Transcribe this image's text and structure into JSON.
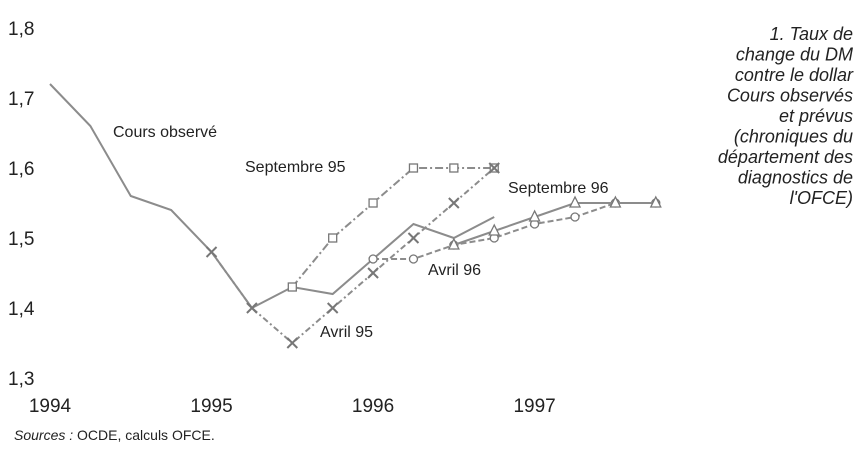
{
  "chart_data": {
    "type": "line",
    "title_lines": [
      "1. Taux de",
      "change du DM",
      "contre le dollar",
      "Cours observés",
      "et prévus",
      "(chroniques du",
      "département des",
      "diagnostics de",
      "l'OFCE)"
    ],
    "source_label": "Sources :",
    "source_text": "OCDE, calculs OFCE.",
    "xlim": [
      1994,
      1997.9
    ],
    "ylim": [
      1.3,
      1.8
    ],
    "xticks": [
      1994,
      1995,
      1996,
      1997
    ],
    "yticks": [
      {
        "value": 1.3,
        "label": "1,3"
      },
      {
        "value": 1.4,
        "label": "1,4"
      },
      {
        "value": 1.5,
        "label": "1,5"
      },
      {
        "value": 1.6,
        "label": "1,6"
      },
      {
        "value": 1.7,
        "label": "1,7"
      },
      {
        "value": 1.8,
        "label": "1,8"
      }
    ],
    "series": [
      {
        "name": "Cours observé",
        "color": "#8c8c8c",
        "marker": "none",
        "dash": "none",
        "x": [
          1994.0,
          1994.25,
          1994.5,
          1994.75,
          1995.0,
          1995.25,
          1995.5,
          1995.75,
          1996.0,
          1996.25,
          1996.5,
          1996.75
        ],
        "values": [
          1.72,
          1.66,
          1.56,
          1.54,
          1.48,
          1.4,
          1.43,
          1.42,
          1.47,
          1.52,
          1.5,
          1.53
        ]
      },
      {
        "name": "Septembre 95",
        "color": "#8c8c8c",
        "marker": "square",
        "dash": "8 3 2 3",
        "x": [
          1995.5,
          1995.75,
          1996.0,
          1996.25,
          1996.5,
          1996.75
        ],
        "values": [
          1.43,
          1.5,
          1.55,
          1.6,
          1.6,
          1.6
        ]
      },
      {
        "name": "Avril 95",
        "color": "#8c8c8c",
        "marker": "cross",
        "dash": "6 3 2 3",
        "x": [
          1995.0,
          1995.25,
          1995.5,
          1995.75,
          1996.0,
          1996.25,
          1996.5,
          1996.75
        ],
        "values": [
          1.48,
          1.4,
          1.35,
          1.4,
          1.45,
          1.5,
          1.55,
          1.6
        ]
      },
      {
        "name": "Avril 96",
        "color": "#8c8c8c",
        "marker": "circle",
        "dash": "6 3",
        "x": [
          1996.0,
          1996.25,
          1996.5,
          1996.75,
          1997.0,
          1997.25,
          1997.5,
          1997.75
        ],
        "values": [
          1.47,
          1.47,
          1.49,
          1.5,
          1.52,
          1.53,
          1.55,
          1.55
        ]
      },
      {
        "name": "Septembre 96",
        "color": "#8c8c8c",
        "marker": "triangle",
        "dash": "none",
        "x": [
          1996.5,
          1996.75,
          1997.0,
          1997.25,
          1997.5,
          1997.75
        ],
        "values": [
          1.49,
          1.51,
          1.53,
          1.55,
          1.55,
          1.55
        ]
      }
    ]
  }
}
